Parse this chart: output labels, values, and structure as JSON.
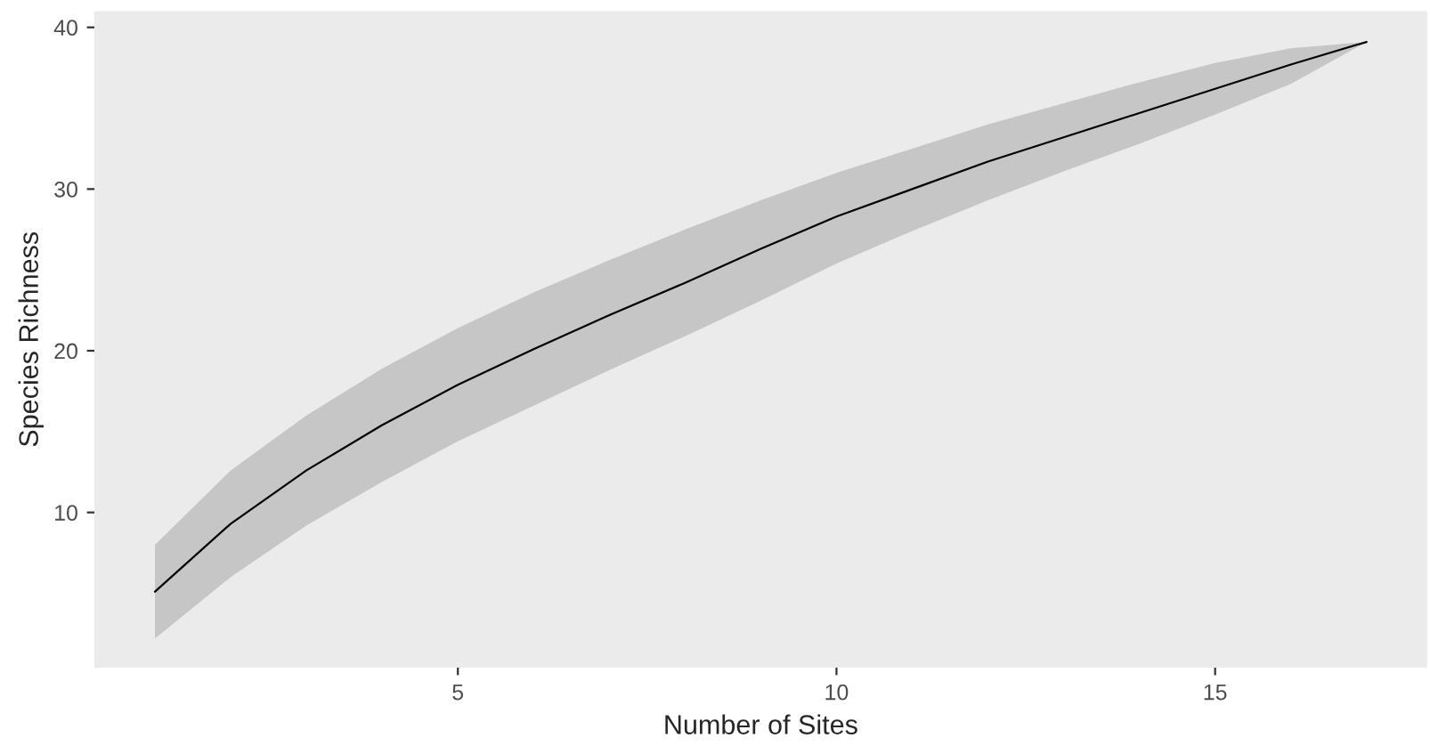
{
  "chart_data": {
    "type": "line",
    "xlabel": "Number of Sites",
    "ylabel": "Species Richness",
    "x": [
      1,
      2,
      3,
      4,
      5,
      6,
      7,
      8,
      9,
      10,
      11,
      12,
      13,
      14,
      15,
      16,
      17
    ],
    "series": [
      {
        "color": "#000000",
        "values": [
          5.1,
          9.3,
          12.6,
          15.4,
          17.9,
          20.1,
          22.2,
          24.2,
          26.3,
          28.3,
          30.0,
          31.7,
          33.2,
          34.7,
          36.2,
          37.7,
          39.1
        ],
        "upper": [
          8.0,
          12.6,
          16.0,
          18.9,
          21.4,
          23.6,
          25.6,
          27.5,
          29.3,
          31.0,
          32.5,
          34.0,
          35.3,
          36.6,
          37.8,
          38.7,
          39.1
        ],
        "lower": [
          2.2,
          6.0,
          9.2,
          11.9,
          14.4,
          16.6,
          18.8,
          20.9,
          23.1,
          25.4,
          27.4,
          29.3,
          31.1,
          32.8,
          34.6,
          36.5,
          39.1
        ]
      }
    ],
    "xlim": [
      0.2,
      17.8
    ],
    "ylim": [
      0.4,
      41
    ],
    "xticks": [
      5,
      10,
      15
    ],
    "yticks": [
      10,
      20,
      30,
      40
    ],
    "grid": false,
    "marker": "none",
    "line_style": "solid"
  }
}
